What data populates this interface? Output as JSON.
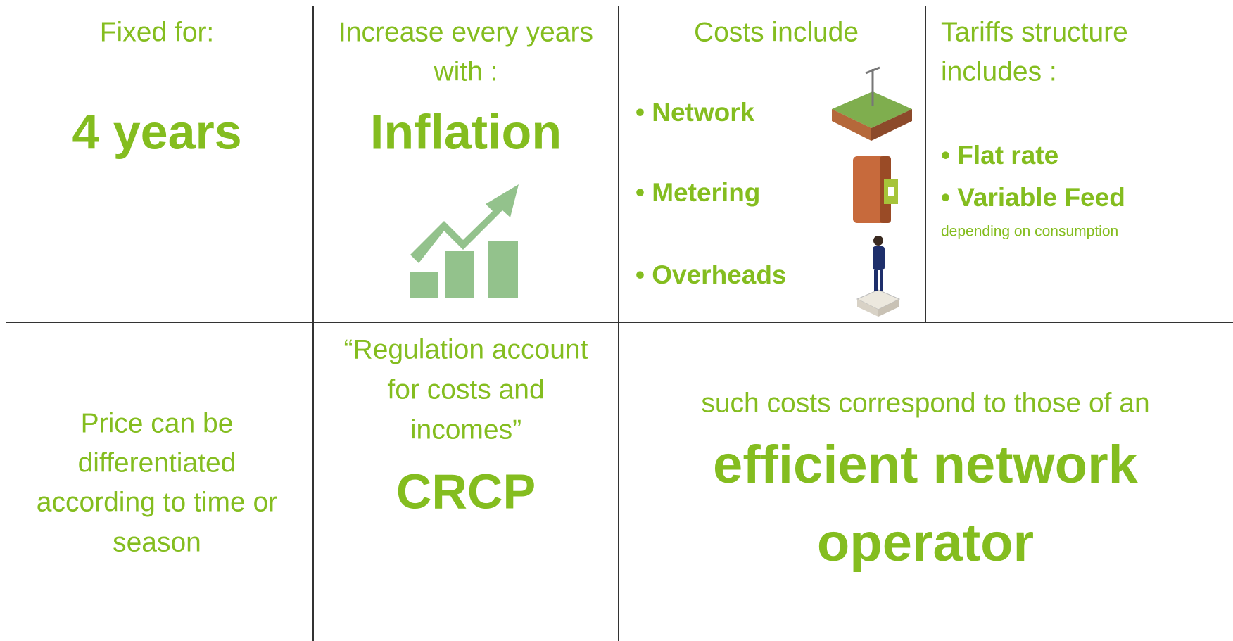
{
  "cells": [
    {
      "heading": [
        "Fixed for:"
      ],
      "emphasis": "4 years"
    },
    {
      "heading": [
        "Increase every years",
        "with :"
      ],
      "emphasis": "Inflation"
    },
    {
      "heading": [
        "Costs include"
      ],
      "items": [
        "• Network",
        "• Metering",
        "• Overheads"
      ]
    },
    {
      "heading": [
        "Tariffs structure",
        "includes :"
      ],
      "items": [
        "• Flat rate",
        "• Variable Feed"
      ],
      "note": "depending on consumption"
    },
    {
      "text": [
        "Price can be",
        "differentiated",
        "according to time or",
        "season"
      ]
    },
    {
      "heading": [
        "“Regulation account",
        "for costs and",
        "incomes”"
      ],
      "emphasis": "CRCP"
    },
    {
      "heading": [
        "such costs correspond to those of an"
      ],
      "emphasis": [
        "efficient network",
        "operator"
      ]
    }
  ]
}
